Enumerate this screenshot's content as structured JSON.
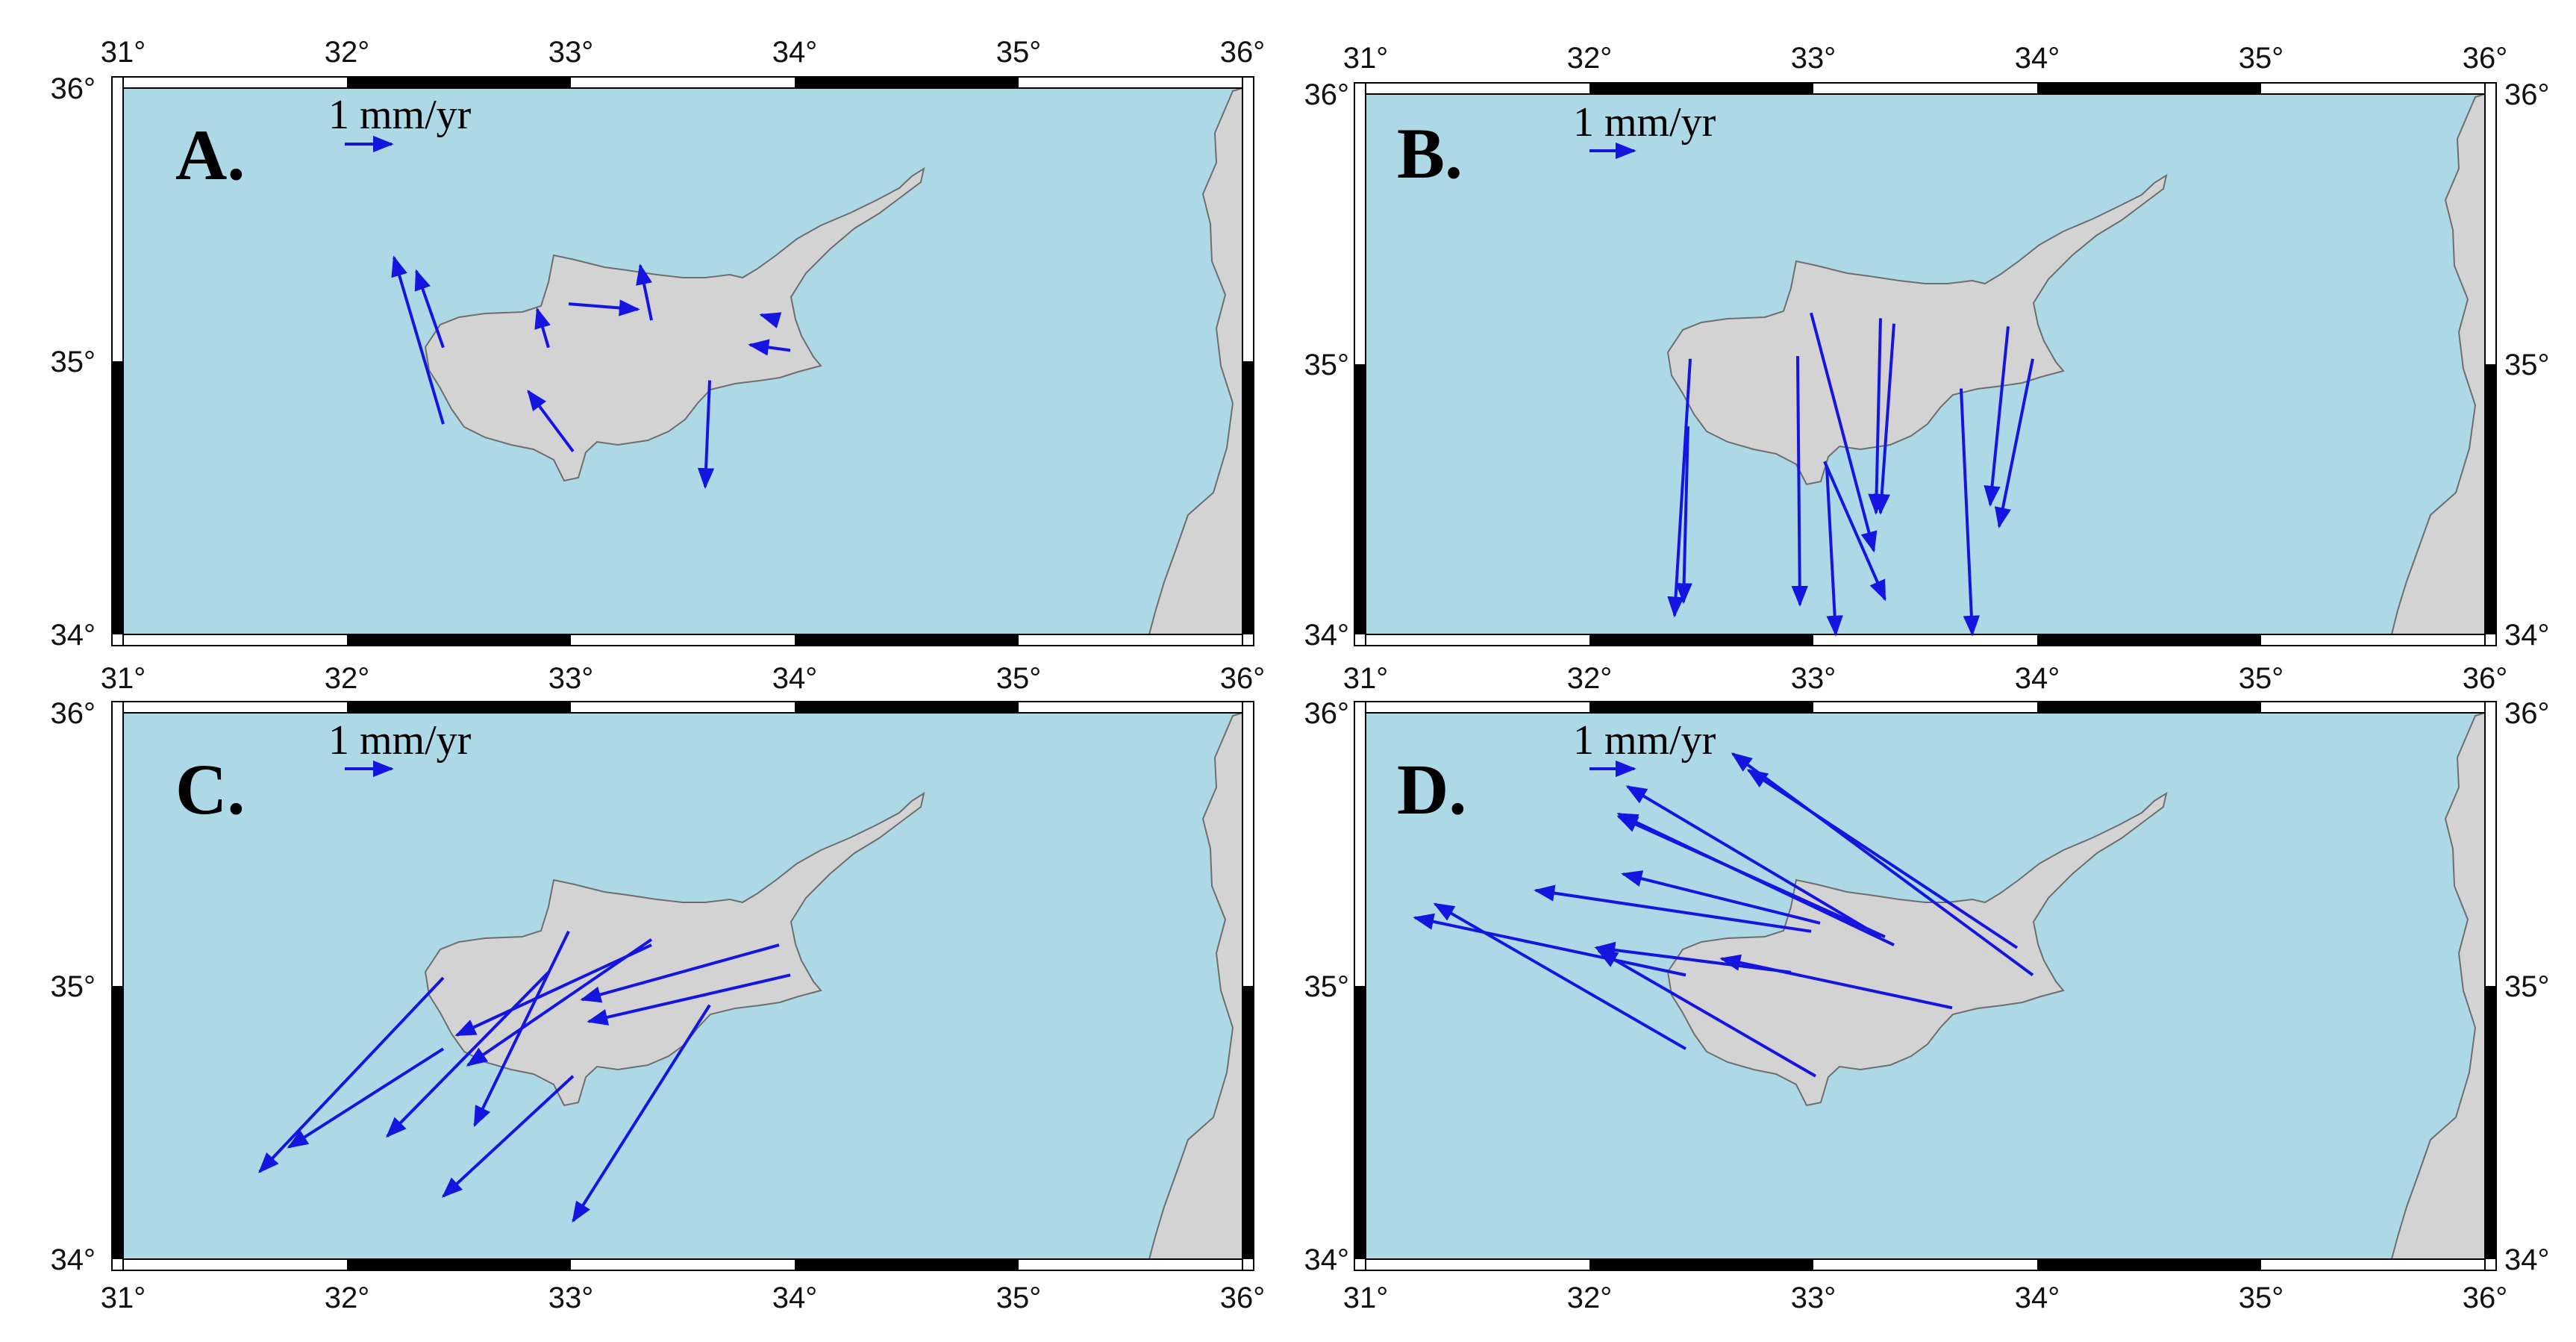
{
  "figure": {
    "colors": {
      "sea": "#add8e6",
      "land": "#d3d3d3",
      "coast": "#6e6e6e",
      "vector": "#1515e0",
      "frame": "#000000"
    },
    "lon_ticks": [
      "31°",
      "32°",
      "33°",
      "34°",
      "35°",
      "36°"
    ],
    "lat_ticks": [
      "36°",
      "35°",
      "34°"
    ],
    "extent": {
      "lon": [
        31,
        36
      ],
      "lat": [
        34,
        36
      ]
    },
    "scale_label": "1 mm/yr",
    "panels": [
      {
        "letter": "A.",
        "vectors": [
          {
            "lon": 32.43,
            "lat": 34.77,
            "elon": 32.21,
            "elat": 35.38
          },
          {
            "lon": 32.43,
            "lat": 35.05,
            "elon": 32.31,
            "elat": 35.33
          },
          {
            "lon": 32.9,
            "lat": 35.05,
            "elon": 32.85,
            "elat": 35.19
          },
          {
            "lon": 33.01,
            "lat": 34.67,
            "elon": 32.81,
            "elat": 34.89
          },
          {
            "lon": 32.99,
            "lat": 35.21,
            "elon": 33.3,
            "elat": 35.19
          },
          {
            "lon": 33.36,
            "lat": 35.15,
            "elon": 33.31,
            "elat": 35.35
          },
          {
            "lon": 33.62,
            "lat": 34.93,
            "elon": 33.6,
            "elat": 34.54
          },
          {
            "lon": 33.98,
            "lat": 35.04,
            "elon": 33.8,
            "elat": 35.06
          },
          {
            "lon": 33.93,
            "lat": 35.15,
            "elon": 33.85,
            "elat": 35.17
          }
        ]
      },
      {
        "letter": "B.",
        "vectors": [
          {
            "lon": 32.45,
            "lat": 35.02,
            "elon": 32.38,
            "elat": 34.07
          },
          {
            "lon": 32.44,
            "lat": 34.77,
            "elon": 32.42,
            "elat": 34.12
          },
          {
            "lon": 32.93,
            "lat": 35.03,
            "elon": 32.94,
            "elat": 34.11
          },
          {
            "lon": 32.99,
            "lat": 35.19,
            "elon": 33.27,
            "elat": 34.31
          },
          {
            "lon": 33.3,
            "lat": 35.17,
            "elon": 33.28,
            "elat": 34.45
          },
          {
            "lon": 33.36,
            "lat": 35.15,
            "elon": 33.3,
            "elat": 34.45
          },
          {
            "lon": 33.05,
            "lat": 34.64,
            "elon": 33.32,
            "elat": 34.13
          },
          {
            "lon": 33.66,
            "lat": 34.91,
            "elon": 33.71,
            "elat": 34.0
          },
          {
            "lon": 33.87,
            "lat": 35.14,
            "elon": 33.79,
            "elat": 34.48
          },
          {
            "lon": 33.98,
            "lat": 35.02,
            "elon": 33.83,
            "elat": 34.4
          },
          {
            "lon": 33.06,
            "lat": 34.62,
            "elon": 33.1,
            "elat": 34.0
          }
        ]
      },
      {
        "letter": "C.",
        "vectors": [
          {
            "lon": 32.43,
            "lat": 35.03,
            "elon": 31.61,
            "elat": 34.32
          },
          {
            "lon": 32.43,
            "lat": 34.77,
            "elon": 31.74,
            "elat": 34.41
          },
          {
            "lon": 32.9,
            "lat": 35.05,
            "elon": 32.18,
            "elat": 34.45
          },
          {
            "lon": 32.99,
            "lat": 35.2,
            "elon": 32.57,
            "elat": 34.49
          },
          {
            "lon": 33.36,
            "lat": 35.15,
            "elon": 32.49,
            "elat": 34.82
          },
          {
            "lon": 33.36,
            "lat": 35.17,
            "elon": 32.54,
            "elat": 34.71
          },
          {
            "lon": 33.01,
            "lat": 34.67,
            "elon": 32.43,
            "elat": 34.23
          },
          {
            "lon": 33.62,
            "lat": 34.93,
            "elon": 33.01,
            "elat": 34.14
          },
          {
            "lon": 33.98,
            "lat": 35.04,
            "elon": 33.08,
            "elat": 34.87
          },
          {
            "lon": 33.93,
            "lat": 35.15,
            "elon": 33.05,
            "elat": 34.95
          }
        ]
      },
      {
        "letter": "D.",
        "vectors": [
          {
            "lon": 32.43,
            "lat": 34.77,
            "elon": 31.31,
            "elat": 35.3
          },
          {
            "lon": 32.43,
            "lat": 35.04,
            "elon": 31.22,
            "elat": 35.25
          },
          {
            "lon": 32.9,
            "lat": 35.05,
            "elon": 32.03,
            "elat": 35.14
          },
          {
            "lon": 32.99,
            "lat": 35.2,
            "elon": 31.76,
            "elat": 35.35
          },
          {
            "lon": 33.01,
            "lat": 34.67,
            "elon": 32.04,
            "elat": 35.13
          },
          {
            "lon": 33.3,
            "lat": 35.18,
            "elon": 32.17,
            "elat": 35.73
          },
          {
            "lon": 33.36,
            "lat": 35.15,
            "elon": 32.13,
            "elat": 35.63
          },
          {
            "lon": 33.32,
            "lat": 35.18,
            "elon": 32.13,
            "elat": 35.62
          },
          {
            "lon": 33.03,
            "lat": 35.23,
            "elon": 32.15,
            "elat": 35.41
          },
          {
            "lon": 33.62,
            "lat": 34.92,
            "elon": 32.59,
            "elat": 35.1
          },
          {
            "lon": 33.98,
            "lat": 35.04,
            "elon": 32.64,
            "elat": 35.85
          },
          {
            "lon": 33.91,
            "lat": 35.14,
            "elon": 32.71,
            "elat": 35.79
          }
        ]
      }
    ]
  }
}
